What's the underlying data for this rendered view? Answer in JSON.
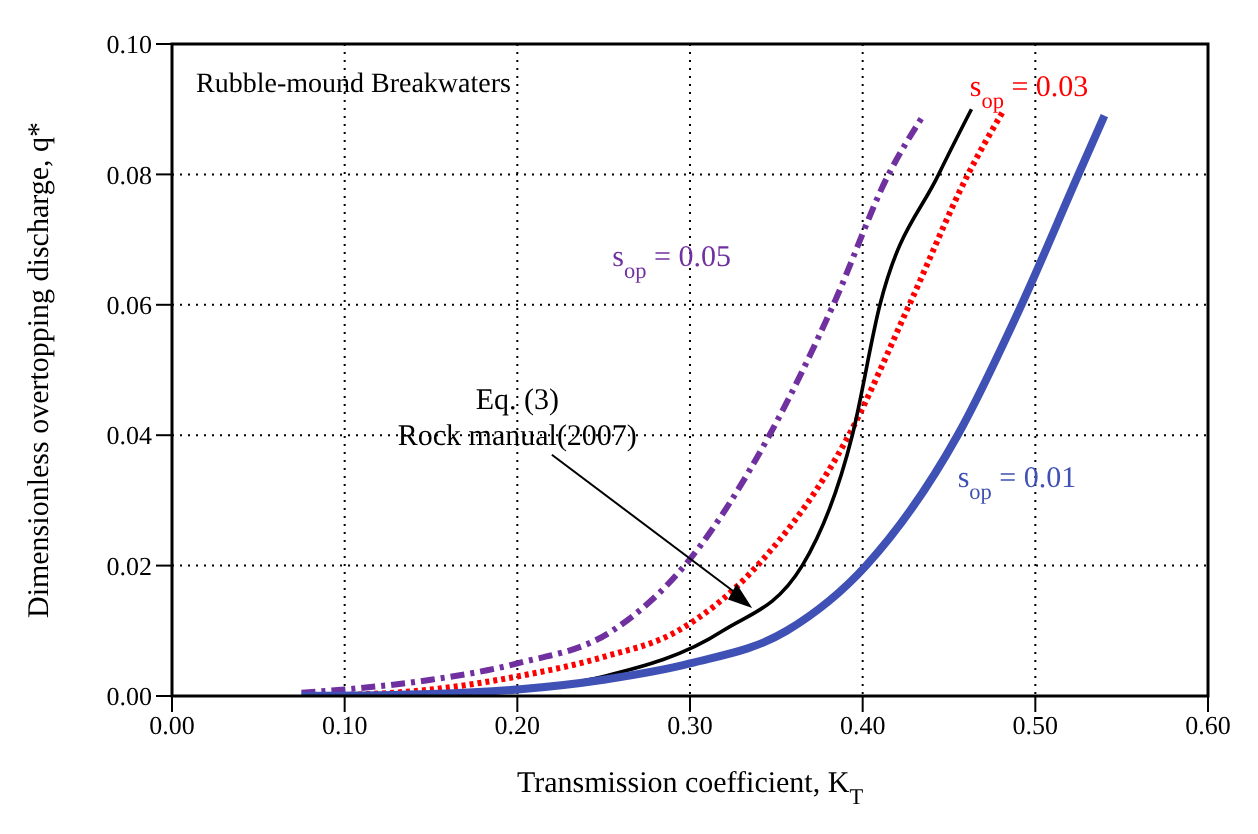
{
  "chart_data": {
    "type": "line",
    "xlabel": "Transmission coefficient, K$_{T}$",
    "ylabel": "Dimensionless overtopping discharge, q*",
    "xlim": [
      0,
      0.6
    ],
    "ylim": [
      0,
      0.1
    ],
    "xticks": [
      {
        "value": 0,
        "label": "0.00"
      },
      {
        "value": 0.1,
        "label": "0.10"
      },
      {
        "value": 0.2,
        "label": "0.20"
      },
      {
        "value": 0.3,
        "label": "0.30"
      },
      {
        "value": 0.4,
        "label": "0.40"
      },
      {
        "value": 0.5,
        "label": "0.50"
      },
      {
        "value": 0.6,
        "label": "0.60"
      }
    ],
    "yticks": [
      {
        "value": 0,
        "label": "0.00"
      },
      {
        "value": 0.02,
        "label": "0.02"
      },
      {
        "value": 0.04,
        "label": "0.04"
      },
      {
        "value": 0.06,
        "label": "0.06"
      },
      {
        "value": 0.08,
        "label": "0.08"
      },
      {
        "value": 0.1,
        "label": "0.10"
      }
    ],
    "grid": true,
    "annotations": [
      "Rubble-mound Breakwaters"
    ],
    "series": [
      {
        "name": "s$_{op}$ = 0.05",
        "color": "#7030a0",
        "line_style": "dashed",
        "x": [
          0.075,
          0.1,
          0.15,
          0.2,
          0.255,
          0.3,
          0.346,
          0.383,
          0.415,
          0.435
        ],
        "values": [
          0.0005,
          0.001,
          0.0025,
          0.005,
          0.01,
          0.021,
          0.04,
          0.06,
          0.08,
          0.089
        ]
      },
      {
        "name": "s$_{op}$ = 0.03",
        "color": "#ff0000",
        "line_style": "dotted",
        "x": [
          0.08,
          0.15,
          0.2,
          0.25,
          0.293,
          0.339,
          0.392,
          0.427,
          0.461,
          0.482
        ],
        "values": [
          0,
          0.001,
          0.003,
          0.006,
          0.01,
          0.02,
          0.04,
          0.06,
          0.08,
          0.09
        ]
      },
      {
        "name": "Eq. (3)\nRock manual(2007)",
        "color": "#000000",
        "line_style": "solid",
        "x": [
          0.1,
          0.15,
          0.2,
          0.25,
          0.319,
          0.365,
          0.394,
          0.41,
          0.444,
          0.463
        ],
        "values": [
          0,
          0.0003,
          0.001,
          0.003,
          0.01,
          0.02,
          0.04,
          0.06,
          0.08,
          0.09
        ]
      },
      {
        "name": "s$_{op}$ = 0.01",
        "color": "#3f51b5",
        "line_style": "solid",
        "x": [
          0.075,
          0.15,
          0.2,
          0.25,
          0.3,
          0.356,
          0.402,
          0.455,
          0.492,
          0.525,
          0.54
        ],
        "values": [
          0,
          0.0003,
          0.001,
          0.0025,
          0.005,
          0.01,
          0.02,
          0.04,
          0.06,
          0.08,
          0.089
        ]
      }
    ]
  }
}
